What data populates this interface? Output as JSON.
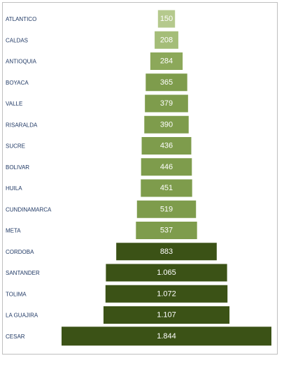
{
  "chart_data": {
    "type": "bar",
    "orientation": "horizontal-centered",
    "title": "",
    "xlabel": "",
    "ylabel": "",
    "grid": false,
    "legend": "none",
    "categories": [
      "ATLANTICO",
      "CALDAS",
      "ANTIOQUIA",
      "BOYACA",
      "VALLE",
      "RISARALDA",
      "SUCRE",
      "BOLIVAR",
      "HUILA",
      "CUNDINAMARCA",
      "META",
      "CORDOBA",
      "SANTANDER",
      "TOLIMA",
      "LA GUAJIRA",
      "CESAR"
    ],
    "values": [
      150,
      208,
      284,
      365,
      379,
      390,
      436,
      446,
      451,
      519,
      537,
      883,
      1065,
      1072,
      1107,
      1844
    ],
    "value_labels": [
      "150",
      "208",
      "284",
      "365",
      "379",
      "390",
      "436",
      "446",
      "451",
      "519",
      "537",
      "883",
      "1.065",
      "1.072",
      "1.107",
      "1.844"
    ],
    "colors": [
      "#b5c98d",
      "#a4bd78",
      "#8ca85a",
      "#7e9c4c",
      "#7e9c4c",
      "#7e9c4c",
      "#7e9c4c",
      "#7e9c4c",
      "#7e9c4c",
      "#7e9c4c",
      "#7e9c4c",
      "#3b5216",
      "#3b5216",
      "#3b5216",
      "#3b5216",
      "#3b5216"
    ]
  }
}
